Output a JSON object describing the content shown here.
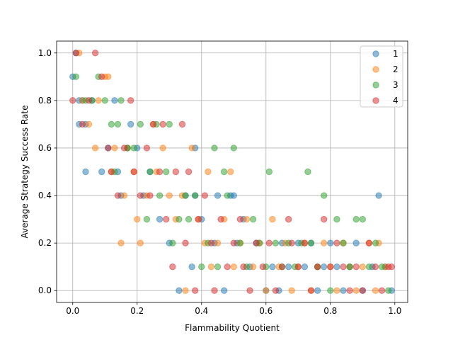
{
  "chart_data": {
    "type": "scatter",
    "xlabel": "Flammability Quotient",
    "ylabel": "Average Strategy Success Rate",
    "xlim": [
      -0.05,
      1.04
    ],
    "ylim": [
      -0.05,
      1.05
    ],
    "xticks": [
      0.0,
      0.2,
      0.4,
      0.6,
      0.8,
      1.0
    ],
    "xtick_labels": [
      "0.0",
      "0.2",
      "0.4",
      "0.6",
      "0.8",
      "1.0"
    ],
    "yticks": [
      0.0,
      0.2,
      0.4,
      0.6,
      0.8,
      1.0
    ],
    "ytick_labels": [
      "0.0",
      "0.2",
      "0.4",
      "0.6",
      "0.8",
      "1.0"
    ],
    "grid": true,
    "legend_position": "top-right",
    "series": [
      {
        "name": "1",
        "color": "#1f77b4",
        "x": [
          0.0,
          0.01,
          0.02,
          0.02,
          0.03,
          0.04,
          0.04,
          0.06,
          0.09,
          0.11,
          0.13,
          0.14,
          0.15,
          0.17,
          0.18,
          0.2,
          0.22,
          0.24,
          0.27,
          0.3,
          0.33,
          0.35,
          0.37,
          0.38,
          0.38,
          0.4,
          0.44,
          0.45,
          0.47,
          0.49,
          0.5,
          0.51,
          0.53,
          0.55,
          0.57,
          0.6,
          0.62,
          0.64,
          0.65,
          0.67,
          0.7,
          0.72,
          0.74,
          0.76,
          0.78,
          0.8,
          0.82,
          0.84,
          0.86,
          0.88,
          0.9,
          0.93,
          0.95,
          0.97,
          0.99
        ],
        "y": [
          0.9,
          1.0,
          0.7,
          0.8,
          0.8,
          0.5,
          0.7,
          0.8,
          0.5,
          0.6,
          0.8,
          0.5,
          0.4,
          0.6,
          0.7,
          0.6,
          0.4,
          0.5,
          0.3,
          0.2,
          0.0,
          0.4,
          0.1,
          0.6,
          0.4,
          0.3,
          0.2,
          0.4,
          0.0,
          0.4,
          0.4,
          0.2,
          0.3,
          0.1,
          0.2,
          0.0,
          0.1,
          0.0,
          0.2,
          0.1,
          0.2,
          0.1,
          0.2,
          0.0,
          0.1,
          0.2,
          0.1,
          0.0,
          0.1,
          0.2,
          0.0,
          0.1,
          0.4,
          0.1,
          0.0
        ]
      },
      {
        "name": "2",
        "color": "#ff7f0e",
        "x": [
          0.02,
          0.03,
          0.05,
          0.07,
          0.08,
          0.1,
          0.11,
          0.12,
          0.13,
          0.15,
          0.16,
          0.17,
          0.19,
          0.2,
          0.21,
          0.23,
          0.25,
          0.26,
          0.28,
          0.3,
          0.32,
          0.34,
          0.35,
          0.37,
          0.39,
          0.41,
          0.42,
          0.43,
          0.45,
          0.47,
          0.49,
          0.5,
          0.52,
          0.54,
          0.56,
          0.58,
          0.6,
          0.62,
          0.64,
          0.66,
          0.68,
          0.7,
          0.72,
          0.74,
          0.76,
          0.78,
          0.8,
          0.82,
          0.84,
          0.86,
          0.88,
          0.9,
          0.92,
          0.94,
          0.95,
          0.97
        ],
        "y": [
          1.0,
          0.8,
          0.7,
          0.6,
          0.8,
          0.9,
          0.9,
          0.5,
          0.6,
          0.2,
          0.4,
          0.6,
          0.5,
          0.3,
          0.2,
          0.4,
          0.7,
          0.5,
          0.6,
          0.4,
          0.3,
          0.4,
          0.0,
          0.6,
          0.3,
          0.2,
          0.5,
          0.1,
          0.2,
          0.3,
          0.5,
          0.1,
          0.2,
          0.3,
          0.1,
          0.2,
          0.0,
          0.3,
          0.1,
          0.2,
          0.0,
          0.1,
          0.2,
          0.0,
          0.1,
          0.2,
          0.1,
          0.0,
          0.2,
          0.1,
          0.0,
          0.1,
          0.2,
          0.0,
          0.2,
          0.1
        ]
      },
      {
        "name": "3",
        "color": "#2ca02c",
        "x": [
          0.01,
          0.04,
          0.06,
          0.08,
          0.1,
          0.12,
          0.13,
          0.14,
          0.15,
          0.17,
          0.19,
          0.21,
          0.23,
          0.24,
          0.26,
          0.27,
          0.29,
          0.3,
          0.31,
          0.33,
          0.35,
          0.36,
          0.38,
          0.4,
          0.42,
          0.44,
          0.45,
          0.47,
          0.48,
          0.5,
          0.52,
          0.54,
          0.56,
          0.58,
          0.6,
          0.61,
          0.63,
          0.65,
          0.67,
          0.69,
          0.71,
          0.73,
          0.74,
          0.76,
          0.78,
          0.8,
          0.82,
          0.84,
          0.86,
          0.88,
          0.9,
          0.92,
          0.94,
          0.96,
          0.98
        ],
        "y": [
          0.9,
          0.8,
          0.8,
          0.9,
          0.8,
          0.7,
          0.5,
          0.7,
          0.8,
          0.6,
          0.6,
          0.7,
          0.3,
          0.5,
          0.7,
          0.4,
          0.5,
          0.7,
          0.2,
          0.3,
          0.4,
          0.3,
          0.4,
          0.1,
          0.2,
          0.6,
          0.1,
          0.5,
          0.4,
          0.6,
          0.2,
          0.1,
          0.3,
          0.2,
          0.1,
          0.5,
          0.2,
          0.1,
          0.2,
          0.1,
          0.2,
          0.5,
          0.2,
          0.1,
          0.4,
          0.0,
          0.3,
          0.2,
          0.1,
          0.3,
          0.3,
          0.1,
          0.2,
          0.1,
          0.0
        ]
      },
      {
        "name": "4",
        "color": "#d62728",
        "x": [
          0.0,
          0.01,
          0.03,
          0.05,
          0.07,
          0.09,
          0.11,
          0.12,
          0.14,
          0.16,
          0.18,
          0.19,
          0.21,
          0.23,
          0.24,
          0.25,
          0.27,
          0.28,
          0.29,
          0.31,
          0.32,
          0.34,
          0.35,
          0.36,
          0.38,
          0.39,
          0.41,
          0.43,
          0.44,
          0.46,
          0.48,
          0.5,
          0.52,
          0.53,
          0.55,
          0.57,
          0.59,
          0.61,
          0.63,
          0.65,
          0.67,
          0.68,
          0.7,
          0.72,
          0.74,
          0.76,
          0.78,
          0.8,
          0.82,
          0.84,
          0.86,
          0.88,
          0.9,
          0.92,
          0.94,
          0.96,
          0.98,
          0.99
        ],
        "y": [
          0.8,
          1.0,
          0.7,
          0.8,
          1.0,
          0.9,
          0.6,
          0.5,
          0.4,
          0.6,
          0.8,
          0.5,
          0.4,
          0.6,
          0.4,
          0.7,
          0.5,
          0.7,
          0.3,
          0.1,
          0.5,
          0.7,
          0.2,
          0.5,
          0.0,
          0.3,
          0.4,
          0.2,
          0.0,
          0.3,
          0.1,
          0.2,
          0.3,
          0.1,
          0.0,
          0.2,
          0.1,
          0.2,
          0.0,
          0.1,
          0.3,
          0.2,
          0.1,
          0.2,
          0.0,
          0.1,
          0.3,
          0.1,
          0.2,
          0.1,
          0.0,
          0.1,
          0.0,
          0.2,
          0.1,
          0.0,
          0.1,
          0.1
        ]
      }
    ]
  }
}
